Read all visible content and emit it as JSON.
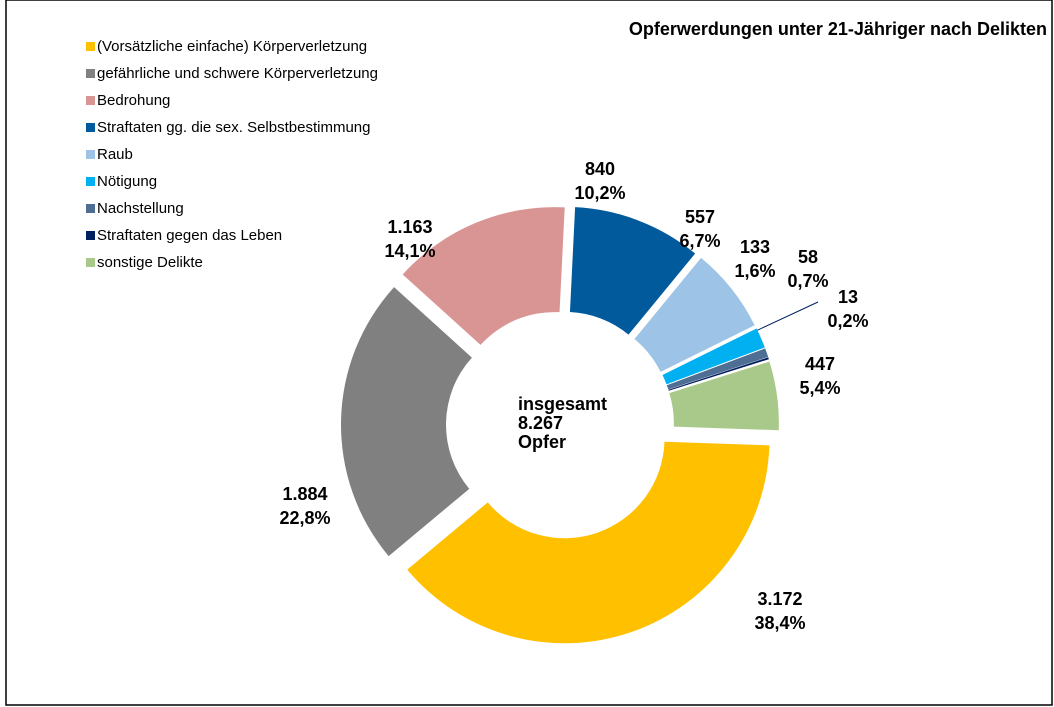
{
  "chart_data": {
    "type": "donut",
    "title": "Opferwerdungen unter 21-Jähriger nach Delikten",
    "categories": [
      "(Vorsätzliche einfache) Körperverletzung",
      "gefährliche und schwere Körperverletzung",
      "Bedrohung",
      "Straftaten gg. die sex. Selbstbestimmung",
      "Raub",
      "Nötigung",
      "Nachstellung",
      "Straftaten gegen das Leben",
      "sonstige Delikte"
    ],
    "values": [
      3172,
      1884,
      1163,
      840,
      557,
      133,
      58,
      13,
      447
    ],
    "value_labels": [
      "3.172",
      "1.884",
      "1.163",
      "840",
      "557",
      "133",
      "58",
      "13",
      "447"
    ],
    "percents": [
      38.4,
      22.8,
      14.1,
      10.2,
      6.7,
      1.6,
      0.7,
      0.2,
      5.4
    ],
    "percent_labels": [
      "38,4%",
      "22,8%",
      "14,1%",
      "10,2%",
      "6,7%",
      "1,6%",
      "0,7%",
      "0,2%",
      "5,4%"
    ],
    "colors": [
      "#FFC000",
      "#808080",
      "#D99594",
      "#005A9C",
      "#9DC3E6",
      "#00B0F0",
      "#4F6E94",
      "#002060",
      "#A9C98A"
    ],
    "center_top": "insgesamt",
    "total": 8267,
    "total_label": "8.267",
    "center_bottom": "Opfer",
    "legend": "top-left"
  }
}
